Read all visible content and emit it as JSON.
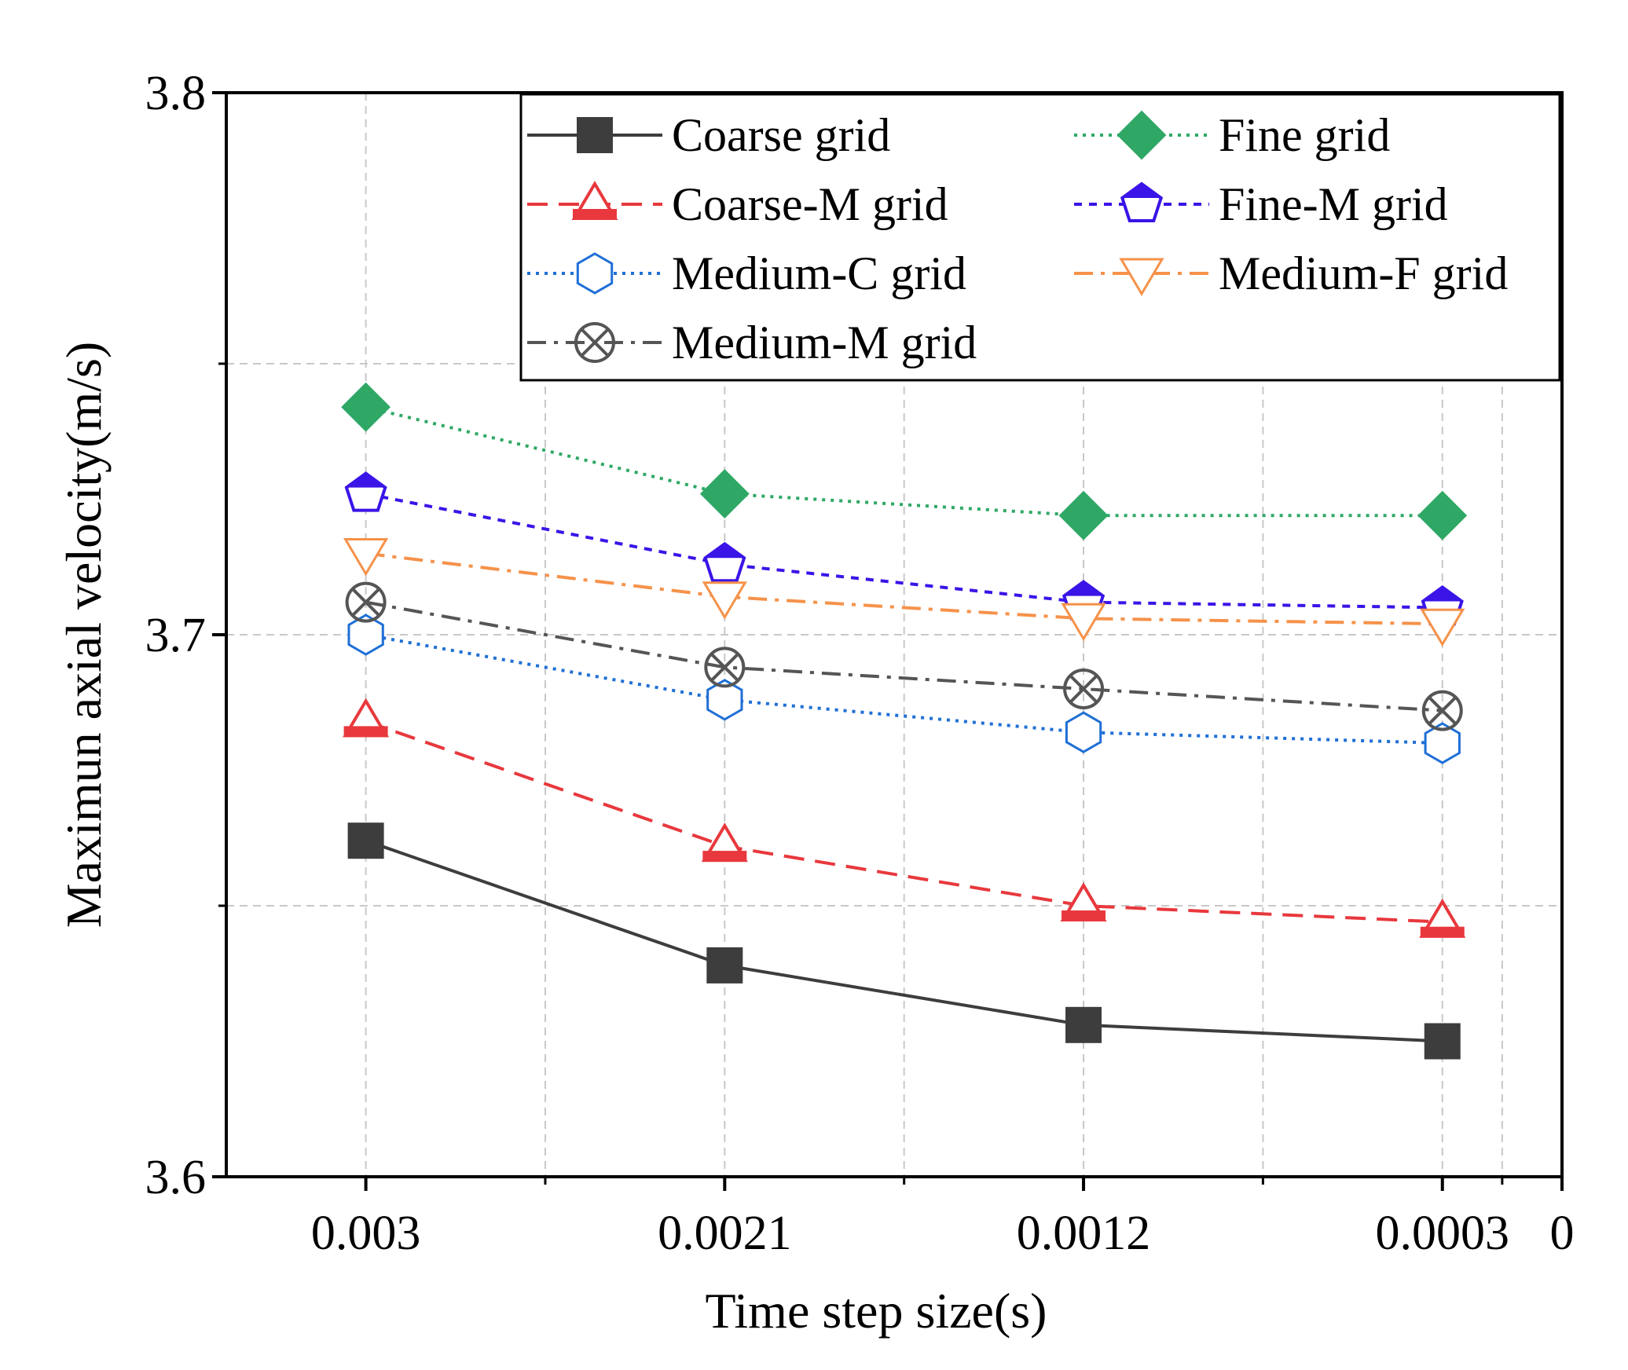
{
  "chart_data": {
    "type": "line",
    "title": "",
    "xlabel": "Time step size(s)",
    "ylabel": "Maximun axial velocity(m/s)",
    "ylim": [
      3.6,
      3.8
    ],
    "xlim": [
      0.00335,
      0.0
    ],
    "grid": true,
    "y_ticks": [
      "3.6",
      "3.7",
      "3.8"
    ],
    "x_ticks": [
      "0.003",
      "0.0021",
      "0.0012",
      "0.0003",
      "0"
    ],
    "x": [
      0.003,
      0.0021,
      0.0012,
      0.0003
    ],
    "legend_position": "top-right",
    "series": [
      {
        "name": "Coarse grid",
        "color": "#3d3d3d",
        "marker": "square",
        "line": "solid",
        "values": [
          3.662,
          3.639,
          3.628,
          3.625
        ]
      },
      {
        "name": "Coarse-M grid",
        "color": "#e8383d",
        "marker": "triangle-up",
        "line": "dashed",
        "values": [
          3.684,
          3.661,
          3.65,
          3.647
        ]
      },
      {
        "name": "Medium-C grid",
        "color": "#1f6fd6",
        "marker": "hexagon",
        "line": "dotted",
        "values": [
          3.7,
          3.688,
          3.682,
          3.68
        ]
      },
      {
        "name": "Medium-M grid",
        "color": "#555555",
        "marker": "circle-x",
        "line": "dash-dot",
        "values": [
          3.706,
          3.694,
          3.69,
          3.686
        ]
      },
      {
        "name": "Fine grid",
        "color": "#2fa865",
        "marker": "diamond",
        "line": "dotted",
        "values": [
          3.742,
          3.726,
          3.722,
          3.722
        ]
      },
      {
        "name": "Fine-M grid",
        "color": "#3b14e8",
        "marker": "pentagon",
        "line": "short-dashed",
        "values": [
          3.726,
          3.713,
          3.706,
          3.705
        ]
      },
      {
        "name": "Medium-F grid",
        "color": "#f5924a",
        "marker": "triangle-down",
        "line": "dash-dot",
        "values": [
          3.715,
          3.707,
          3.703,
          3.702
        ]
      }
    ],
    "legend_order": [
      "Coarse grid",
      "Fine grid",
      "Coarse-M grid",
      "Fine-M grid",
      "Medium-C grid",
      "Medium-F grid",
      "Medium-M grid"
    ]
  }
}
